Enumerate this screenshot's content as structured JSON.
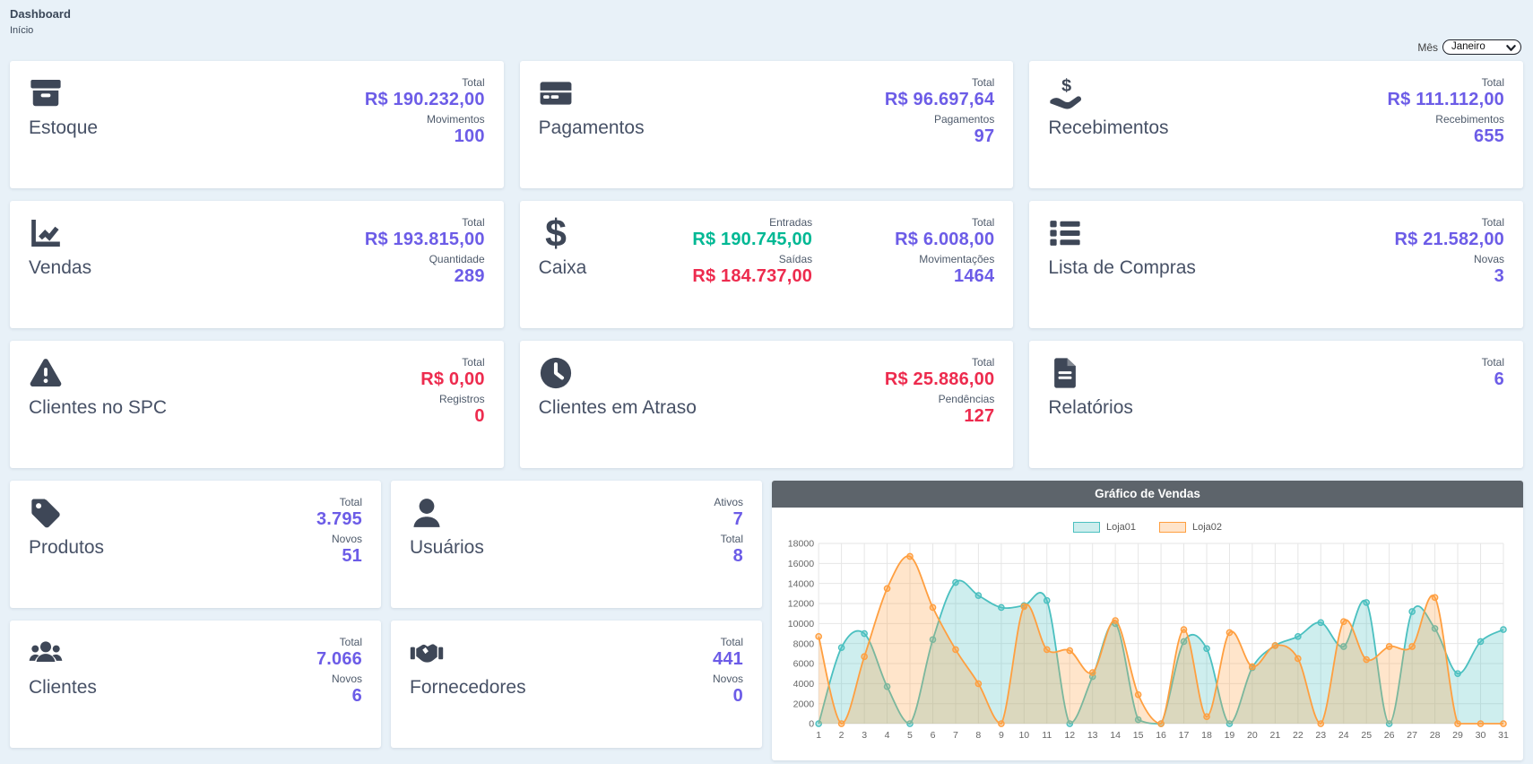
{
  "page": {
    "title": "Dashboard",
    "breadcrumb": "Início"
  },
  "month_filter": {
    "label": "Mês",
    "selected": "Janeiro"
  },
  "colors": {
    "purple": "#6c5ce7",
    "green": "#00b894",
    "red": "#ed2b4e",
    "icon": "#3e4757",
    "chart_header_bg": "#5d646b",
    "background": "#e8f1f8",
    "teal": "#4bc0c0",
    "orange": "#ff9f40"
  },
  "stat_cards": [
    {
      "id": "estoque",
      "icon": "archive-icon",
      "label": "Estoque",
      "stat_groups": [
        [
          {
            "label": "Total",
            "value": "R$ 190.232,00",
            "color": "purple"
          },
          {
            "label": "Movimentos",
            "value": "100",
            "color": "purple"
          }
        ]
      ]
    },
    {
      "id": "pagamentos",
      "icon": "credit-card-icon",
      "label": "Pagamentos",
      "stat_groups": [
        [
          {
            "label": "Total",
            "value": "R$ 96.697,64",
            "color": "purple"
          },
          {
            "label": "Pagamentos",
            "value": "97",
            "color": "purple"
          }
        ]
      ]
    },
    {
      "id": "recebimentos",
      "icon": "hand-holding-dollar-icon",
      "label": "Recebimentos",
      "stat_groups": [
        [
          {
            "label": "Total",
            "value": "R$ 111.112,00",
            "color": "purple"
          },
          {
            "label": "Recebimentos",
            "value": "655",
            "color": "purple"
          }
        ]
      ]
    },
    {
      "id": "vendas",
      "icon": "chart-line-icon",
      "label": "Vendas",
      "stat_groups": [
        [
          {
            "label": "Total",
            "value": "R$ 193.815,00",
            "color": "purple"
          },
          {
            "label": "Quantidade",
            "value": "289",
            "color": "purple"
          }
        ]
      ]
    },
    {
      "id": "caixa",
      "icon": "dollar-icon",
      "label": "Caixa",
      "stat_groups": [
        [
          {
            "label": "Entradas",
            "value": "R$ 190.745,00",
            "color": "green"
          },
          {
            "label": "Saídas",
            "value": "R$ 184.737,00",
            "color": "red"
          }
        ],
        [
          {
            "label": "Total",
            "value": "R$ 6.008,00",
            "color": "purple"
          },
          {
            "label": "Movimentações",
            "value": "1464",
            "color": "purple"
          }
        ]
      ]
    },
    {
      "id": "lista-de-compras",
      "icon": "list-icon",
      "label": "Lista de Compras",
      "stat_groups": [
        [
          {
            "label": "Total",
            "value": "R$ 21.582,00",
            "color": "purple"
          },
          {
            "label": "Novas",
            "value": "3",
            "color": "purple"
          }
        ]
      ]
    },
    {
      "id": "clientes-no-spc",
      "icon": "warning-triangle-icon",
      "label": "Clientes no SPC",
      "stat_groups": [
        [
          {
            "label": "Total",
            "value": "R$ 0,00",
            "color": "red"
          },
          {
            "label": "Registros",
            "value": "0",
            "color": "red"
          }
        ]
      ]
    },
    {
      "id": "clientes-em-atraso",
      "icon": "clock-icon",
      "label": "Clientes em Atraso",
      "stat_groups": [
        [
          {
            "label": "Total",
            "value": "R$ 25.886,00",
            "color": "red"
          },
          {
            "label": "Pendências",
            "value": "127",
            "color": "red"
          }
        ]
      ]
    },
    {
      "id": "relatorios",
      "icon": "document-icon",
      "label": "Relatórios",
      "stat_groups": [
        [
          {
            "label": "Total",
            "value": "6",
            "color": "purple"
          }
        ]
      ]
    }
  ],
  "mini_cards": [
    {
      "id": "produtos",
      "icon": "tag-icon",
      "label": "Produtos",
      "stat_groups": [
        [
          {
            "label": "Total",
            "value": "3.795",
            "color": "purple"
          },
          {
            "label": "Novos",
            "value": "51",
            "color": "purple"
          }
        ]
      ]
    },
    {
      "id": "usuarios",
      "icon": "user-icon",
      "label": "Usuários",
      "stat_groups": [
        [
          {
            "label": "Ativos",
            "value": "7",
            "color": "purple"
          },
          {
            "label": "Total",
            "value": "8",
            "color": "purple"
          }
        ]
      ]
    },
    {
      "id": "clientes",
      "icon": "users-icon",
      "label": "Clientes",
      "stat_groups": [
        [
          {
            "label": "Total",
            "value": "7.066",
            "color": "purple"
          },
          {
            "label": "Novos",
            "value": "6",
            "color": "purple"
          }
        ]
      ]
    },
    {
      "id": "fornecedores",
      "icon": "handshake-icon",
      "label": "Fornecedores",
      "stat_groups": [
        [
          {
            "label": "Total",
            "value": "441",
            "color": "purple"
          },
          {
            "label": "Novos",
            "value": "0",
            "color": "purple"
          }
        ]
      ]
    }
  ],
  "sales_chart": {
    "title": "Gráfico de Vendas",
    "chart_data": {
      "type": "area",
      "x": [
        1,
        2,
        3,
        4,
        5,
        6,
        7,
        8,
        9,
        10,
        11,
        12,
        13,
        14,
        15,
        16,
        17,
        18,
        19,
        20,
        21,
        22,
        23,
        24,
        25,
        26,
        27,
        28,
        29,
        30,
        31
      ],
      "series": [
        {
          "name": "Loja01",
          "color": "#4bc0c0",
          "values": [
            0,
            7600,
            9000,
            3700,
            0,
            8400,
            14100,
            12800,
            11600,
            11800,
            12300,
            0,
            4700,
            10000,
            400,
            0,
            8200,
            7500,
            0,
            5600,
            7800,
            8700,
            10100,
            7700,
            12100,
            0,
            11200,
            9500,
            5000,
            8200,
            9400
          ]
        },
        {
          "name": "Loja02",
          "color": "#ff9f40",
          "values": [
            8700,
            0,
            6700,
            13500,
            16700,
            11600,
            7400,
            4000,
            0,
            11700,
            7400,
            7300,
            5100,
            10300,
            2900,
            0,
            9400,
            700,
            9100,
            5700,
            7800,
            6500,
            0,
            10200,
            6400,
            7700,
            7700,
            12600,
            0,
            0,
            0
          ]
        }
      ],
      "ylim": [
        0,
        18000
      ],
      "ytick_step": 2000,
      "grid": true,
      "legend_position": "top",
      "xlabel": "",
      "ylabel": ""
    }
  }
}
